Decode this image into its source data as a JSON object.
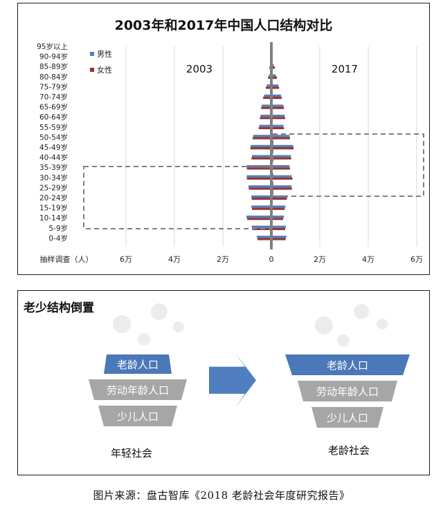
{
  "chart_data": {
    "type": "bar",
    "title": "2003年和2017年中国人口结构对比",
    "categories": [
      "95岁以上",
      "90-94岁",
      "85-89岁",
      "80-84岁",
      "75-79岁",
      "70-74岁",
      "65-69岁",
      "60-64岁",
      "55-59岁",
      "50-54岁",
      "45-49岁",
      "40-44岁",
      "35-39岁",
      "30-34岁",
      "25-29岁",
      "20-24岁",
      "15-19岁",
      "10-14岁",
      "5-9岁",
      "0-4岁"
    ],
    "groups": [
      {
        "name": "2003",
        "series": [
          {
            "name": "男性",
            "values": [
              100,
              200,
              500,
              1000,
              1900,
              3000,
              4000,
              4500,
              5000,
              7500,
              8500,
              8000,
              10200,
              10200,
              9500,
              8300,
              8300,
              10300,
              8100,
              6000
            ]
          },
          {
            "name": "女性",
            "values": [
              200,
              400,
              800,
              1400,
              2300,
              3400,
              4200,
              4700,
              5200,
              7700,
              8700,
              8200,
              10100,
              10100,
              9300,
              8100,
              8000,
              10000,
              7800,
              5700
            ]
          }
        ]
      },
      {
        "name": "2017",
        "series": [
          {
            "name": "男性",
            "values": [
              100,
              300,
              1000,
              1900,
              2900,
              4000,
              5000,
              5500,
              5000,
              7500,
              9000,
              8000,
              7500,
              8400,
              8300,
              6700,
              5800,
              5200,
              6000,
              6200
            ]
          },
          {
            "name": "女性",
            "values": [
              200,
              600,
              1500,
              2300,
              3200,
              4300,
              5200,
              5700,
              5200,
              7700,
              9200,
              8200,
              7700,
              8700,
              8500,
              6400,
              5500,
              4900,
              5700,
              5900
            ]
          }
        ]
      }
    ],
    "x_axis_label": "抽样调查（人）",
    "x_ticks": [
      {
        "value": -60000,
        "label": "6万"
      },
      {
        "value": -40000,
        "label": "4万"
      },
      {
        "value": -20000,
        "label": "2万"
      },
      {
        "value": 0,
        "label": "0"
      },
      {
        "value": 20000,
        "label": "2万"
      },
      {
        "value": 40000,
        "label": "4万"
      },
      {
        "value": 60000,
        "label": "6万"
      }
    ],
    "xlim": [
      -60000,
      60000
    ],
    "legend": [
      "男性",
      "女性"
    ],
    "legend_placement": "top-left",
    "annotations": [
      "2003",
      "2017"
    ],
    "colors": {
      "male": "#4f7fbf",
      "female": "#943634",
      "box": "#7f7f7f"
    }
  },
  "panel2": {
    "title": "老少结构倒置",
    "young": {
      "top": "老龄人口",
      "mid": "劳动年龄人口",
      "bottom": "少儿人口",
      "label": "年轻社会"
    },
    "old": {
      "top": "老龄人口",
      "mid": "劳动年龄人口",
      "bottom": "少儿人口",
      "label": "老龄社会"
    },
    "colors": {
      "blue": "#4a78b8",
      "gray": "#a6a6a6",
      "arrow": "#4f7fc0"
    }
  },
  "caption": "图片来源：盘古智库《2018 老龄社会年度研究报告》"
}
